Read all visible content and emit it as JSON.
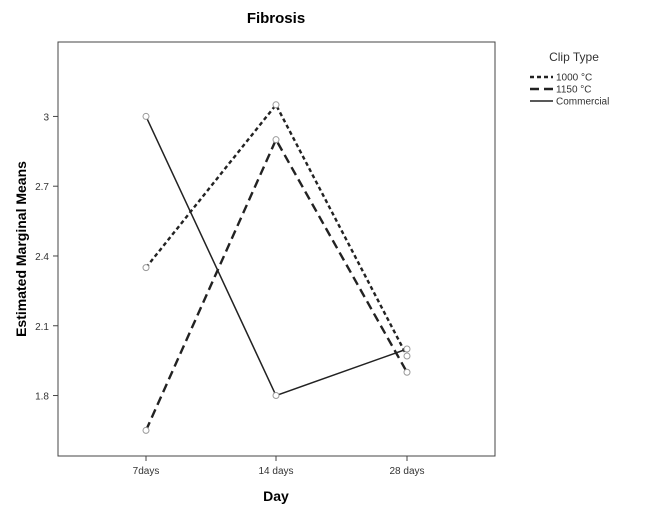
{
  "chart_data": {
    "type": "line",
    "title": "Fibrosis",
    "xlabel": "Day",
    "ylabel": "Estimated Marginal Means",
    "categories": [
      "7days",
      "14 days",
      "28 days"
    ],
    "yticks": [
      "1.8",
      "2.1",
      "2.4",
      "2.7",
      "3"
    ],
    "ylim": [
      1.54,
      3.32
    ],
    "legend": {
      "title": "Clip Type",
      "position": "outside-top-right"
    },
    "series": [
      {
        "name": "1000 °C",
        "style": "dotted",
        "values": [
          2.35,
          3.05,
          1.97
        ]
      },
      {
        "name": "1150 °C",
        "style": "dashed",
        "values": [
          1.65,
          2.9,
          1.9
        ]
      },
      {
        "name": "Commercial",
        "style": "solid",
        "values": [
          3.0,
          1.8,
          2.0
        ]
      }
    ],
    "grid": false,
    "line_color": "#222222",
    "marker": "open-circle"
  }
}
